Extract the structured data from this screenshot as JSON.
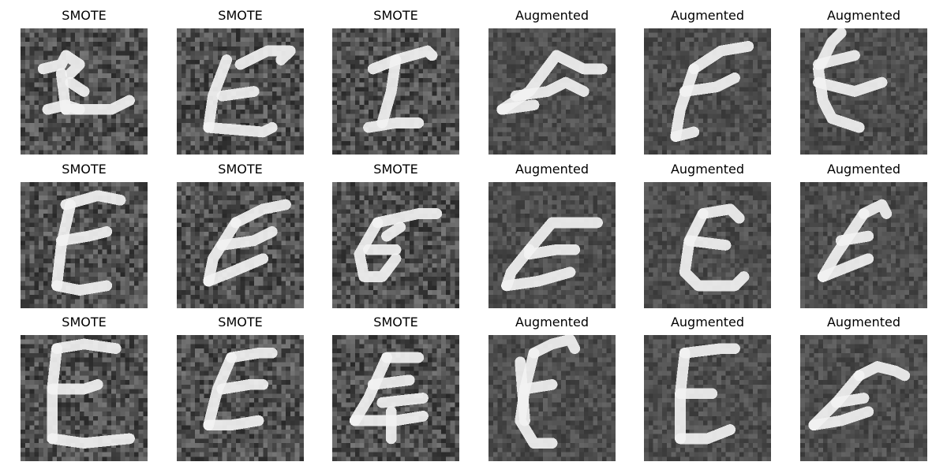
{
  "figure": {
    "grid": {
      "rows": 3,
      "cols": 6
    },
    "colormap": "gray",
    "panels": [
      {
        "title": "SMOTE"
      },
      {
        "title": "SMOTE"
      },
      {
        "title": "SMOTE"
      },
      {
        "title": "Augmented"
      },
      {
        "title": "Augmented"
      },
      {
        "title": "Augmented"
      },
      {
        "title": "SMOTE"
      },
      {
        "title": "SMOTE"
      },
      {
        "title": "SMOTE"
      },
      {
        "title": "Augmented"
      },
      {
        "title": "Augmented"
      },
      {
        "title": "Augmented"
      },
      {
        "title": "SMOTE"
      },
      {
        "title": "SMOTE"
      },
      {
        "title": "SMOTE"
      },
      {
        "title": "Augmented"
      },
      {
        "title": "Augmented"
      },
      {
        "title": "Augmented"
      }
    ]
  }
}
